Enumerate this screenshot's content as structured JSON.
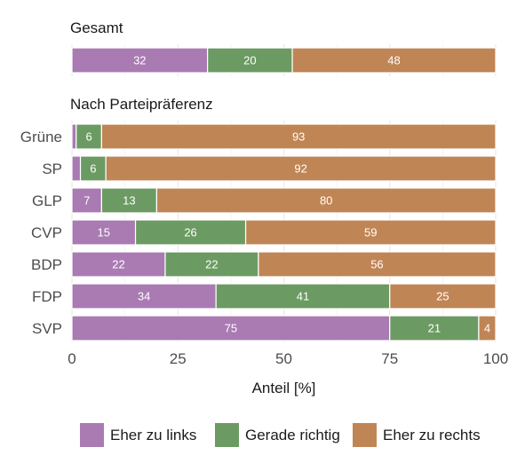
{
  "chart_data": {
    "type": "bar",
    "orientation": "horizontal",
    "stacked": true,
    "xlabel": "Anteil [%]",
    "xlim": [
      0,
      100
    ],
    "xticks": [
      0,
      25,
      50,
      75,
      100
    ],
    "grid": true,
    "legend_position": "bottom",
    "series": [
      {
        "name": "Eher zu links",
        "color": "#a97bb2"
      },
      {
        "name": "Gerade richtig",
        "color": "#6c9a63"
      },
      {
        "name": "Eher zu rechts",
        "color": "#c08555"
      }
    ],
    "panels": [
      {
        "title": "Gesamt",
        "categories": [
          ""
        ],
        "values": [
          [
            32,
            20,
            48
          ]
        ]
      },
      {
        "title": "Nach Parteipräferenz",
        "categories": [
          "Grüne",
          "SP",
          "GLP",
          "CVP",
          "BDP",
          "FDP",
          "SVP"
        ],
        "values": [
          [
            1,
            6,
            93
          ],
          [
            2,
            6,
            92
          ],
          [
            7,
            13,
            80
          ],
          [
            15,
            26,
            59
          ],
          [
            22,
            22,
            56
          ],
          [
            34,
            41,
            25
          ],
          [
            75,
            21,
            4
          ]
        ]
      }
    ]
  }
}
